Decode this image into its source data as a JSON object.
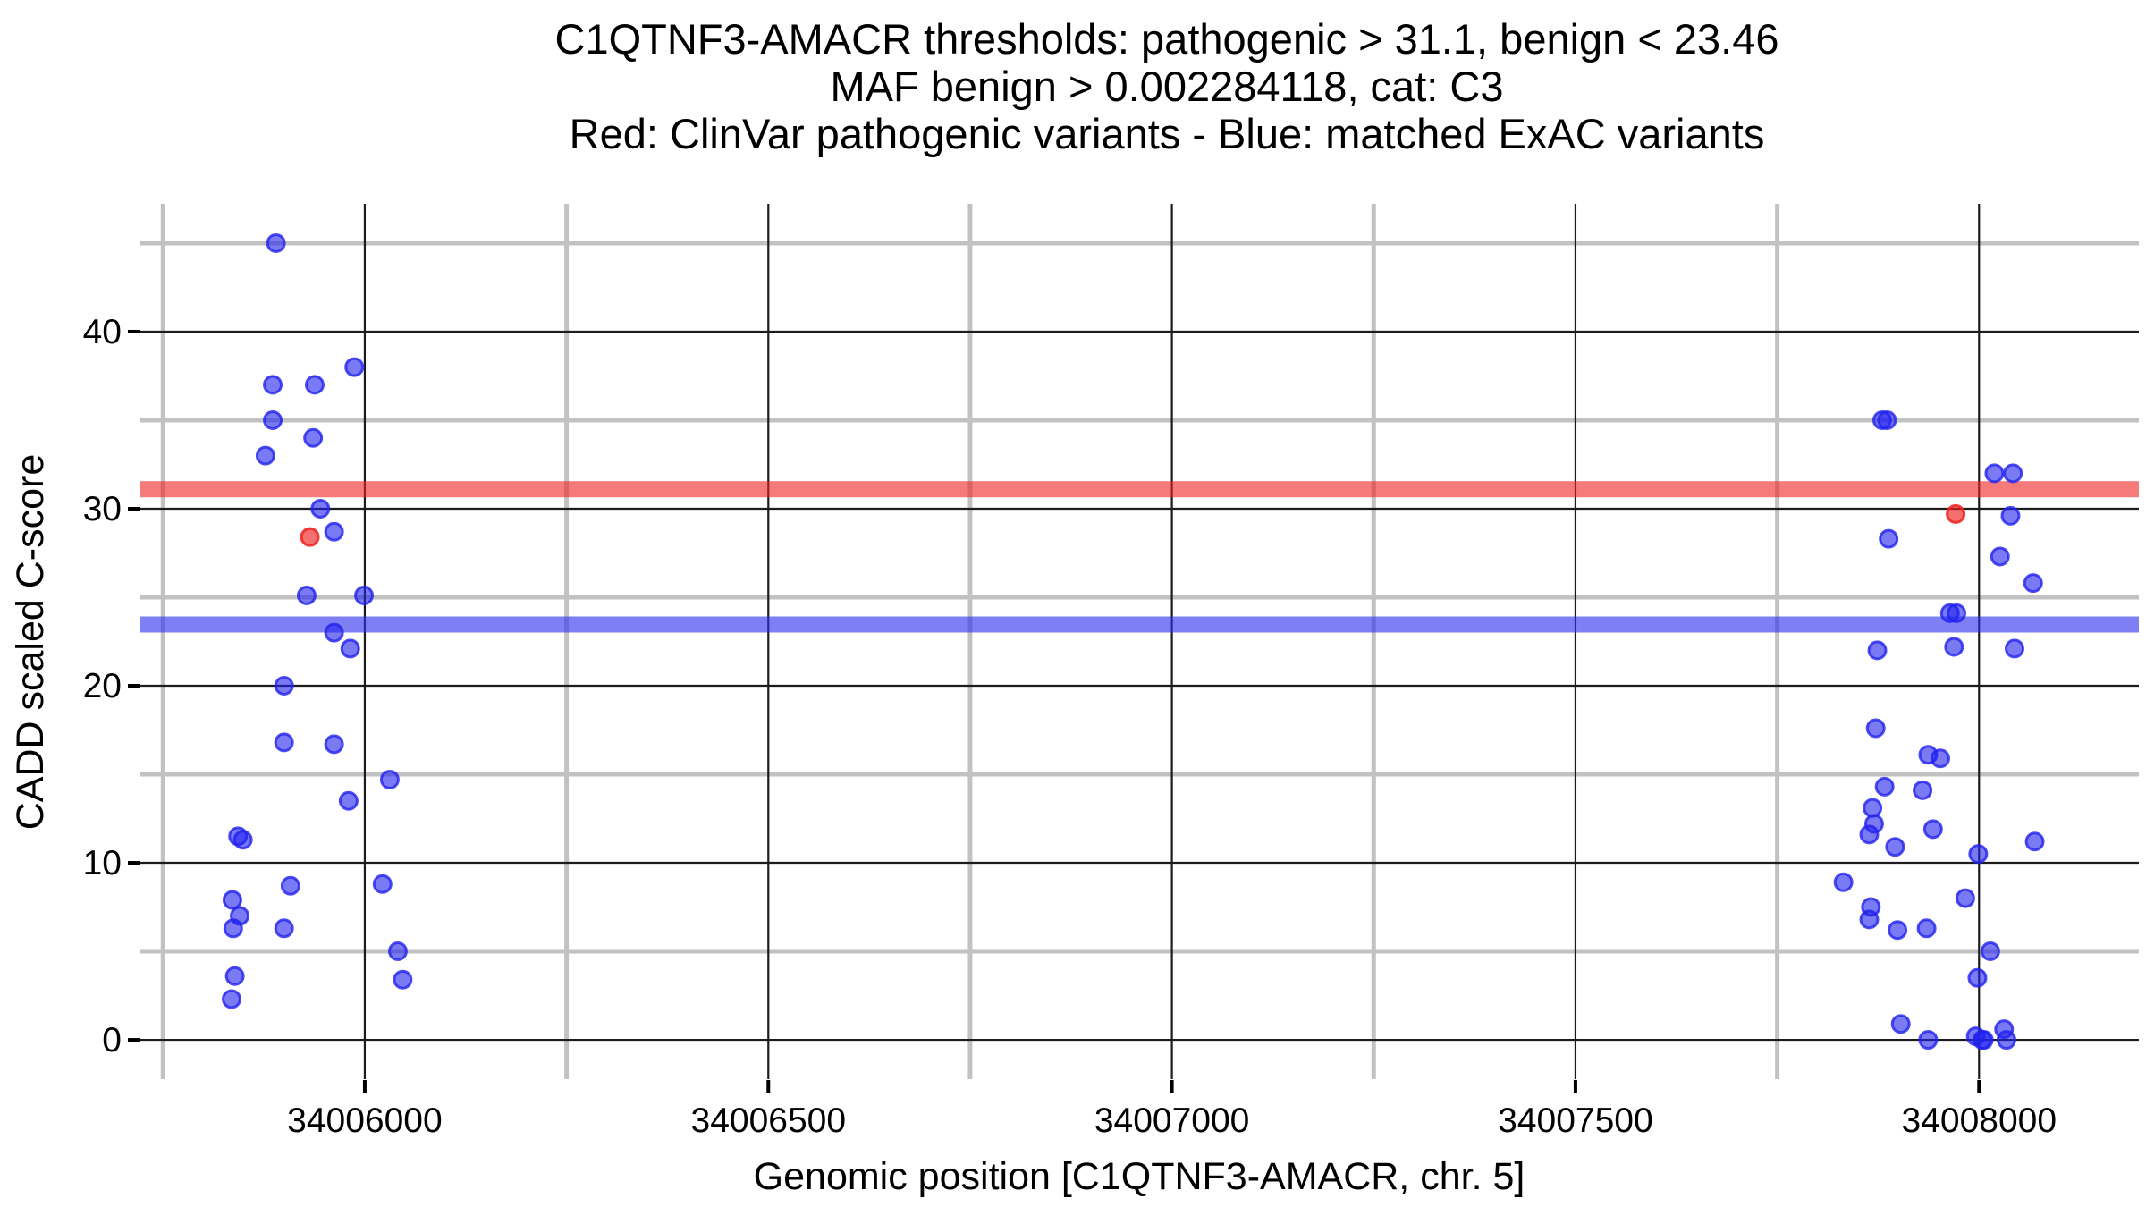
{
  "chart_data": {
    "type": "scatter",
    "title_lines": [
      "C1QTNF3-AMACR thresholds: pathogenic > 31.1, benign < 23.46",
      "MAF benign > 0.002284118, cat: C3",
      "Red: ClinVar pathogenic variants - Blue: matched ExAC variants"
    ],
    "xlabel": "Genomic position [C1QTNF3-AMACR, chr. 5]",
    "ylabel": "CADD scaled C-score",
    "xlim": [
      34005722,
      34008198
    ],
    "ylim": [
      -2.22,
      47.22
    ],
    "x_major_ticks": [
      34006000,
      34006500,
      34007000,
      34007500,
      34008000
    ],
    "x_minor_gridlines": [
      34005750,
      34006250,
      34006750,
      34007250,
      34007750
    ],
    "y_major_ticks": [
      0,
      10,
      20,
      30,
      40
    ],
    "y_minor_gridlines": [
      5,
      15,
      25,
      35,
      45
    ],
    "grid": {
      "major_color": "#1c1c1c",
      "minor_color": "#c2c2c2",
      "major_width": 2.2,
      "minor_width": 5
    },
    "thresholds": [
      {
        "name": "pathogenic",
        "value": 31.1,
        "color": "#ee2222",
        "opacity": 0.6
      },
      {
        "name": "benign",
        "value": 23.46,
        "color": "#3030ee",
        "opacity": 0.62
      }
    ],
    "point_style": {
      "radius": 9.5,
      "stroke_width": 3
    },
    "series": [
      {
        "name": "ClinVar pathogenic variants",
        "color": "#ee2222",
        "fill_opacity": 0.65,
        "stroke_opacity": 0.85,
        "points": [
          [
            34005932,
            28.4
          ],
          [
            34007971,
            29.7
          ]
        ]
      },
      {
        "name": "matched ExAC variants",
        "color": "#2222ee",
        "fill_opacity": 0.6,
        "stroke_opacity": 0.8,
        "points": [
          [
            34005890,
            45.0
          ],
          [
            34005987,
            38.0
          ],
          [
            34005886,
            37.0
          ],
          [
            34005938,
            37.0
          ],
          [
            34005886,
            35.0
          ],
          [
            34005936,
            34.0
          ],
          [
            34005877,
            33.0
          ],
          [
            34005945,
            30.0
          ],
          [
            34005962,
            28.7
          ],
          [
            34005928,
            25.1
          ],
          [
            34005999,
            25.1
          ],
          [
            34005962,
            23.0
          ],
          [
            34005982,
            22.1
          ],
          [
            34005900,
            20.0
          ],
          [
            34005900,
            16.8
          ],
          [
            34005962,
            16.7
          ],
          [
            34006031,
            14.7
          ],
          [
            34005980,
            13.5
          ],
          [
            34005843,
            11.5
          ],
          [
            34005849,
            11.3
          ],
          [
            34006022,
            8.8
          ],
          [
            34005908,
            8.7
          ],
          [
            34005836,
            7.9
          ],
          [
            34005845,
            7.0
          ],
          [
            34005837,
            6.3
          ],
          [
            34005900,
            6.3
          ],
          [
            34006041,
            5.0
          ],
          [
            34005839,
            3.6
          ],
          [
            34006047,
            3.4
          ],
          [
            34005835,
            2.3
          ],
          [
            34007880,
            35.0
          ],
          [
            34007886,
            35.0
          ],
          [
            34008019,
            32.0
          ],
          [
            34008042,
            32.0
          ],
          [
            34008039,
            29.6
          ],
          [
            34007888,
            28.3
          ],
          [
            34008026,
            27.3
          ],
          [
            34008067,
            25.8
          ],
          [
            34007964,
            24.1
          ],
          [
            34007972,
            24.1
          ],
          [
            34007969,
            22.2
          ],
          [
            34008044,
            22.1
          ],
          [
            34007874,
            22.0
          ],
          [
            34007872,
            17.6
          ],
          [
            34007937,
            16.1
          ],
          [
            34007952,
            15.9
          ],
          [
            34007883,
            14.3
          ],
          [
            34007930,
            14.1
          ],
          [
            34007868,
            13.1
          ],
          [
            34007870,
            12.2
          ],
          [
            34007943,
            11.9
          ],
          [
            34007864,
            11.6
          ],
          [
            34008069,
            11.2
          ],
          [
            34007896,
            10.9
          ],
          [
            34007999,
            10.5
          ],
          [
            34007832,
            8.9
          ],
          [
            34007983,
            8.0
          ],
          [
            34007866,
            7.5
          ],
          [
            34007864,
            6.8
          ],
          [
            34007935,
            6.3
          ],
          [
            34007899,
            6.2
          ],
          [
            34008014,
            5.0
          ],
          [
            34007998,
            3.5
          ],
          [
            34007903,
            0.9
          ],
          [
            34008031,
            0.6
          ],
          [
            34007996,
            0.2
          ],
          [
            34007937,
            0.0
          ],
          [
            34008004,
            0.0
          ],
          [
            34008006,
            0.0
          ],
          [
            34008034,
            0.0
          ]
        ]
      }
    ]
  }
}
